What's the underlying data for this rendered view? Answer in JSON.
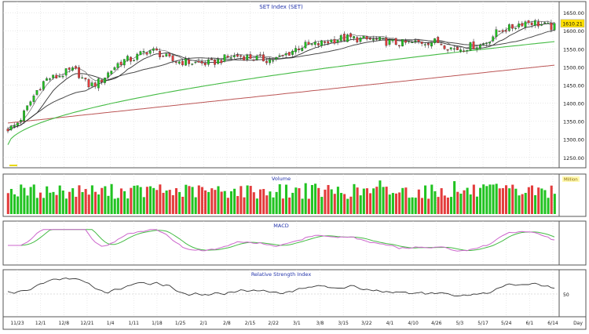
{
  "chart_data": [
    {
      "type": "candlestick",
      "title": "SET Index (SET)",
      "y_ticks": [
        1650,
        1600,
        1550,
        1500,
        1450,
        1400,
        1350,
        1300,
        1250
      ],
      "ylim": [
        1230,
        1672
      ],
      "last_value_label": "1610.21",
      "grid": true,
      "overlays": [
        "moving-average-short",
        "moving-average-medium",
        "moving-average-long",
        "moving-average-very-long",
        "bollinger-upper"
      ],
      "colors": {
        "up": "#21c321",
        "down": "#e33c3c",
        "ma_short": "#303030",
        "ma_mid": "#4a4a4a",
        "ma_long": "#44bb44",
        "ma_vlong": "#bb5555",
        "label_bg": "#ffe000"
      }
    },
    {
      "type": "bar",
      "title": "Volume",
      "legend_label": "Million",
      "grid": true,
      "colors": {
        "up": "#21c321",
        "down": "#e33c3c"
      }
    },
    {
      "type": "line",
      "title": "MACD",
      "grid": true,
      "series_colors": [
        "#cc66cc",
        "#44bb44"
      ]
    },
    {
      "type": "line",
      "title": "Relative Strength Index",
      "y_ticks": [
        50
      ],
      "grid": true,
      "series_colors": [
        "#333333"
      ]
    }
  ],
  "x_axis": {
    "tick_labels": [
      "11/23",
      "12/1",
      "12/8",
      "12/21",
      "1/4",
      "1/11",
      "1/18",
      "1/25",
      "2/1",
      "2/8",
      "2/15",
      "2/22",
      "3/1",
      "3/8",
      "3/15",
      "3/22",
      "4/1",
      "4/10",
      "4/26",
      "5/3",
      "5/17",
      "5/24",
      "6/1",
      "6/14"
    ],
    "unit_label": "Day"
  }
}
